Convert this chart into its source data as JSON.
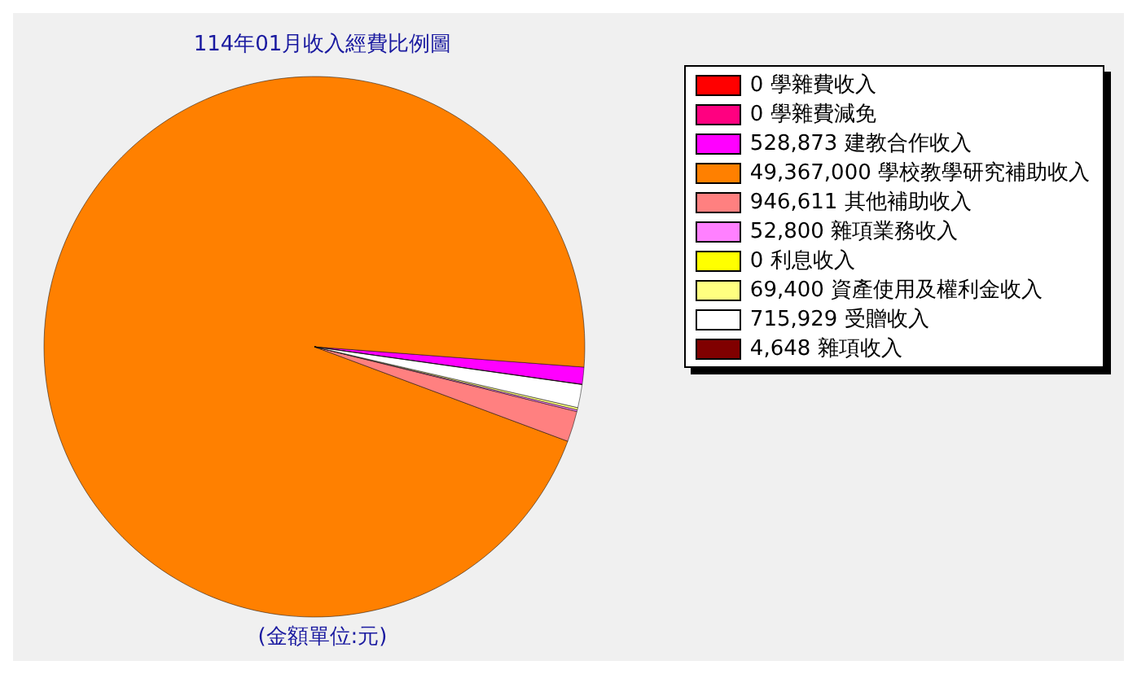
{
  "chart_data": {
    "type": "pie",
    "title": "114年01月收入經費比例圖",
    "categories": [
      "0 學雜費收入",
      "0 學雜費減免",
      "528,873 建教合作收入",
      "49,367,000 學校教學研究補助收入",
      "946,611 其他補助收入",
      "52,800 雜項業務收入",
      "0 利息收入",
      "69,400 資產使用及權利金收入",
      "715,929 受贈收入",
      "4,648 雜項收入"
    ],
    "values": [
      0,
      0,
      528873,
      49367000,
      946611,
      52800,
      0,
      69400,
      715929,
      4648
    ],
    "colors": [
      "#ff0000",
      "#ff0080",
      "#ff00ff",
      "#ff8000",
      "#ff8080",
      "#ff80ff",
      "#ffff00",
      "#ffff80",
      "#ffffff",
      "#800000"
    ],
    "legend": "right",
    "annotations": [
      "(金額單位:元)"
    ]
  }
}
